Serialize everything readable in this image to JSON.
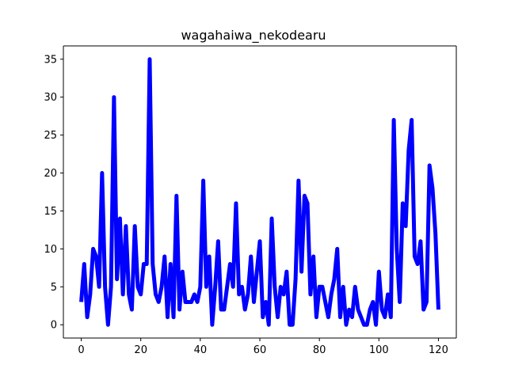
{
  "chart_data": {
    "type": "line",
    "title": "wagahaiwa_nekodearu",
    "xlabel": "",
    "ylabel": "",
    "xlim": [
      -6,
      126
    ],
    "ylim": [
      -1.75,
      36.75
    ],
    "xticks": [
      0,
      20,
      40,
      60,
      80,
      100,
      120
    ],
    "yticks": [
      0,
      5,
      10,
      15,
      20,
      25,
      30,
      35
    ],
    "grid": false,
    "legend": "none",
    "line_color": "#0000ff",
    "series": [
      {
        "x": [
          0,
          1,
          2,
          3,
          4,
          5,
          6,
          7,
          8,
          9,
          10,
          11,
          12,
          13,
          14,
          15,
          16,
          17,
          18,
          19,
          20,
          21,
          22,
          23,
          24,
          25,
          26,
          27,
          28,
          29,
          30,
          31,
          32,
          33,
          34,
          35,
          36,
          37,
          38,
          39,
          40,
          41,
          42,
          43,
          44,
          45,
          46,
          47,
          48,
          49,
          50,
          51,
          52,
          53,
          54,
          55,
          56,
          57,
          58,
          59,
          60,
          61,
          62,
          63,
          64,
          65,
          66,
          67,
          68,
          69,
          70,
          71,
          72,
          73,
          74,
          75,
          76,
          77,
          78,
          79,
          80,
          81,
          82,
          83,
          84,
          85,
          86,
          87,
          88,
          89,
          90,
          91,
          92,
          93,
          94,
          95,
          96,
          97,
          98,
          99,
          100,
          101,
          102,
          103,
          104,
          105,
          106,
          107,
          108,
          109,
          110,
          111,
          112,
          113,
          114,
          115,
          116,
          117,
          118,
          119,
          120
        ],
        "values": [
          3,
          8,
          1,
          4,
          10,
          9,
          5,
          20,
          5,
          0,
          5,
          30,
          6,
          14,
          4,
          13,
          4,
          2,
          13,
          5,
          4,
          8,
          8,
          35,
          8,
          4,
          3,
          5,
          9,
          1,
          8,
          1,
          17,
          2,
          7,
          3,
          3,
          3,
          4,
          3,
          5,
          19,
          5,
          9,
          0,
          5,
          11,
          2,
          2,
          5,
          8,
          5,
          16,
          4,
          5,
          2,
          4,
          9,
          3,
          7,
          11,
          1,
          3,
          0,
          14,
          5,
          1,
          5,
          4,
          7,
          0,
          0,
          6,
          19,
          7,
          17,
          16,
          4,
          9,
          1,
          5,
          5,
          3,
          1,
          4,
          6,
          10,
          1,
          5,
          0,
          2,
          1,
          5,
          2,
          1,
          0,
          0,
          2,
          3,
          0,
          7,
          2,
          1,
          4,
          1,
          27,
          10,
          3,
          16,
          13,
          23,
          27,
          9,
          8,
          11,
          2,
          3,
          21,
          18,
          12,
          2
        ]
      }
    ]
  }
}
